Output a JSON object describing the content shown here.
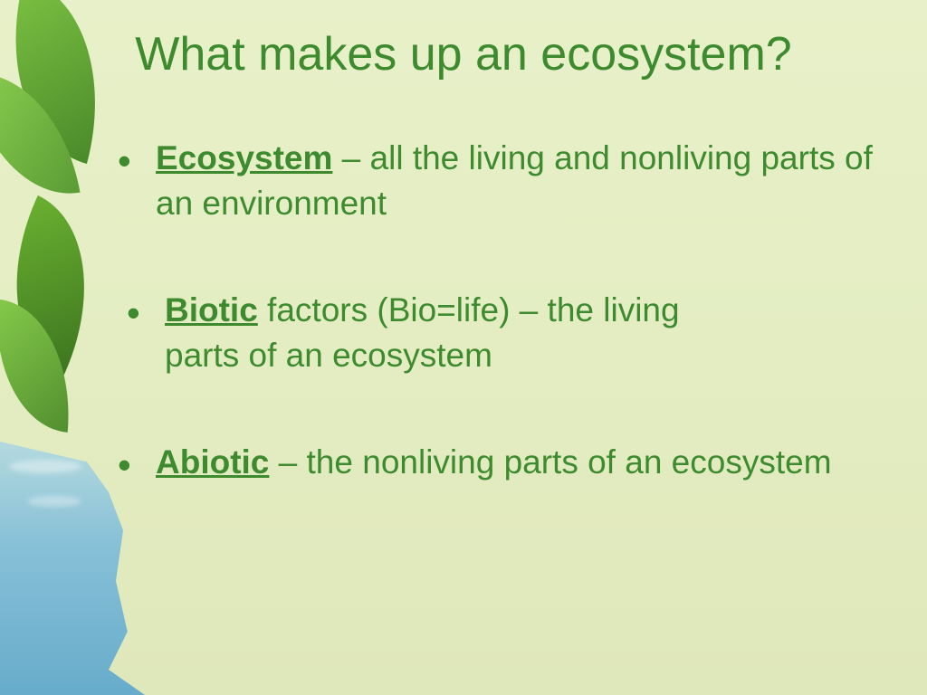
{
  "slide": {
    "title": "What makes up an ecosystem?",
    "bullets": [
      {
        "term": "Ecosystem",
        "rest": " – all the living and nonliving parts of an environment"
      },
      {
        "term": "Biotic",
        "mid": " factors (Bio=life) – the living",
        "rest": "parts of an ecosystem"
      },
      {
        "term": "Abiotic",
        "rest": " – the nonliving parts of an ecosystem"
      }
    ]
  },
  "style": {
    "title_color": "#3d8b2e",
    "text_color": "#3d8b2e",
    "title_fontsize": 52,
    "body_fontsize": 37,
    "background_gradient": [
      "#e8f0c9",
      "#dfe8ba"
    ],
    "leaf_colors": [
      "#7cc142",
      "#4a8a2a",
      "#8dd050",
      "#5a9c35"
    ],
    "water_colors": [
      "#a0d2eb",
      "#5aa5cd"
    ]
  }
}
